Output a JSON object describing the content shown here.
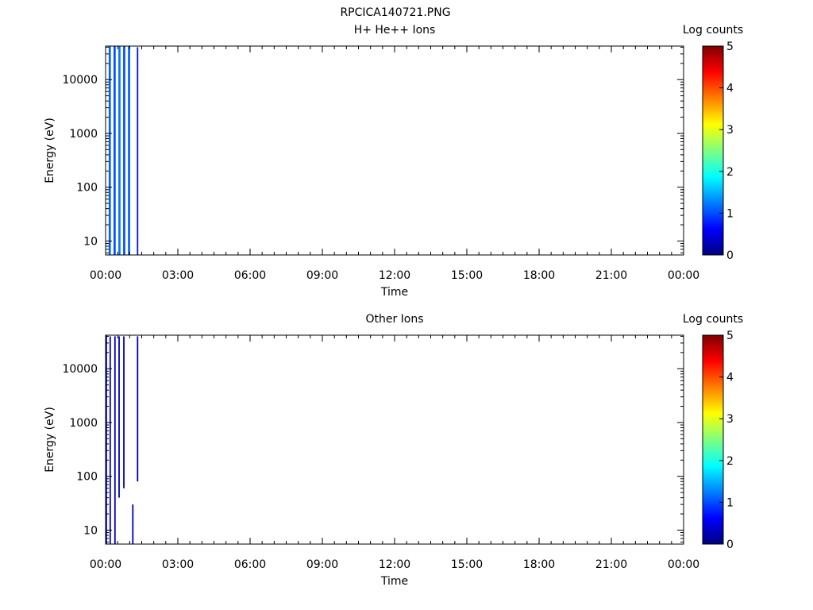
{
  "title": "RPCICA140721.PNG",
  "colors": {
    "colormap": [
      "#00007f",
      "#0000ff",
      "#007fff",
      "#00ffff",
      "#7fff7f",
      "#ffff00",
      "#ff7f00",
      "#ff0000",
      "#7f0000"
    ]
  },
  "chart_data": [
    {
      "type": "heatmap",
      "title": "H+ He++ Ions",
      "xlabel": "Time",
      "ylabel": "Energy (eV)",
      "xticks": [
        "00:00",
        "03:00",
        "06:00",
        "09:00",
        "12:00",
        "15:00",
        "18:00",
        "21:00",
        "00:00"
      ],
      "xlim_hours": [
        0,
        24
      ],
      "yscale": "log",
      "ylim": [
        5.5,
        42000
      ],
      "yticks": [
        {
          "value": 10,
          "label": "10"
        },
        {
          "value": 100,
          "label": "100"
        },
        {
          "value": 1000,
          "label": "1000"
        },
        {
          "value": 10000,
          "label": "10000"
        }
      ],
      "colorbar": {
        "label": "Log counts",
        "range": [
          0,
          5
        ],
        "ticks": [
          "0",
          "1",
          "2",
          "3",
          "4",
          "5"
        ]
      },
      "data_columns": [
        {
          "start_hour": 0.13,
          "end_hour": 0.22,
          "ymin": 5.5,
          "ymax": 42000,
          "log_counts": 1.1
        },
        {
          "start_hour": 0.33,
          "end_hour": 0.42,
          "ymin": 5.5,
          "ymax": 42000,
          "log_counts": 1.0
        },
        {
          "start_hour": 0.53,
          "end_hour": 0.62,
          "ymin": 5.5,
          "ymax": 42000,
          "log_counts": 1.2
        },
        {
          "start_hour": 0.73,
          "end_hour": 0.82,
          "ymin": 5.5,
          "ymax": 42000,
          "log_counts": 1.0
        },
        {
          "start_hour": 0.93,
          "end_hour": 1.02,
          "ymin": 5.5,
          "ymax": 42000,
          "log_counts": 1.1
        },
        {
          "start_hour": 1.3,
          "end_hour": 1.36,
          "ymin": 5.5,
          "ymax": 40000,
          "log_counts": 0.7
        }
      ]
    },
    {
      "type": "heatmap",
      "title": "Other Ions",
      "xlabel": "Time",
      "ylabel": "Energy (eV)",
      "xticks": [
        "00:00",
        "03:00",
        "06:00",
        "09:00",
        "12:00",
        "15:00",
        "18:00",
        "21:00",
        "00:00"
      ],
      "xlim_hours": [
        0,
        24
      ],
      "yscale": "log",
      "ylim": [
        5.5,
        42000
      ],
      "yticks": [
        {
          "value": 10,
          "label": "10"
        },
        {
          "value": 100,
          "label": "100"
        },
        {
          "value": 1000,
          "label": "1000"
        },
        {
          "value": 10000,
          "label": "10000"
        }
      ],
      "colorbar": {
        "label": "Log counts",
        "range": [
          0,
          5
        ],
        "ticks": [
          "0",
          "1",
          "2",
          "3",
          "4",
          "5"
        ]
      },
      "data_columns": [
        {
          "start_hour": 0.0,
          "end_hour": 0.06,
          "ymin": 5.5,
          "ymax": 42000,
          "log_counts": 0.3
        },
        {
          "start_hour": 0.16,
          "end_hour": 0.22,
          "ymin": 5.5,
          "ymax": 40000,
          "log_counts": 0.3
        },
        {
          "start_hour": 0.36,
          "end_hour": 0.42,
          "ymin": 5.5,
          "ymax": 40000,
          "log_counts": 0.3
        },
        {
          "start_hour": 0.53,
          "end_hour": 0.59,
          "ymin": 40,
          "ymax": 40000,
          "log_counts": 0.3
        },
        {
          "start_hour": 0.73,
          "end_hour": 0.79,
          "ymin": 60,
          "ymax": 40000,
          "log_counts": 0.3
        },
        {
          "start_hour": 1.1,
          "end_hour": 1.16,
          "ymin": 5.5,
          "ymax": 30,
          "log_counts": 0.3
        },
        {
          "start_hour": 1.3,
          "end_hour": 1.36,
          "ymin": 80,
          "ymax": 40000,
          "log_counts": 0.3
        }
      ]
    }
  ]
}
